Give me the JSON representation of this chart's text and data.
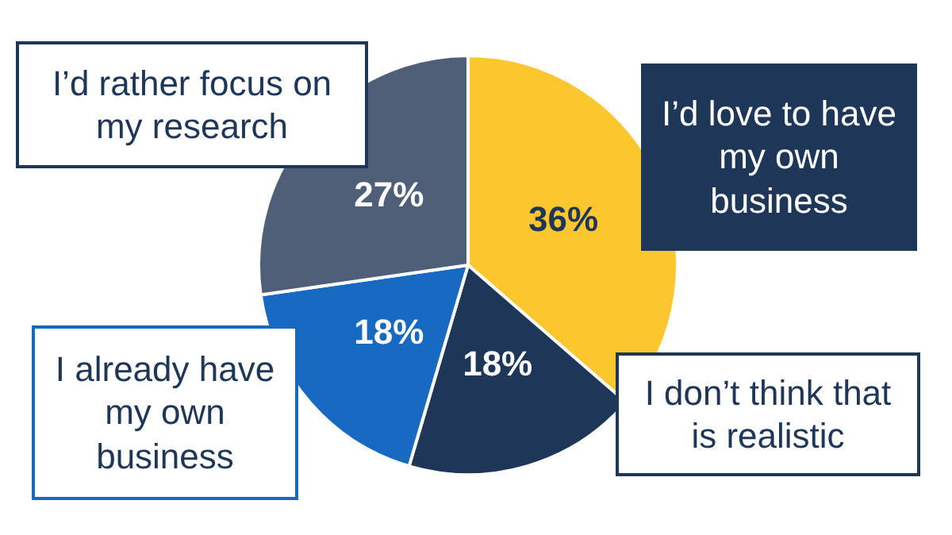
{
  "chart_data": {
    "type": "pie",
    "categories": [
      "I’d love to have my own business",
      "I don’t think that is realistic",
      "I already have my own business",
      "I’d rather focus on my research"
    ],
    "values": [
      36,
      18,
      18,
      27
    ],
    "colors": [
      "#fcc72e",
      "#1e3658",
      "#1769c2",
      "#4f5f78"
    ],
    "value_labels": [
      "36%",
      "18%",
      "18%",
      "27%"
    ],
    "legend": false
  }
}
